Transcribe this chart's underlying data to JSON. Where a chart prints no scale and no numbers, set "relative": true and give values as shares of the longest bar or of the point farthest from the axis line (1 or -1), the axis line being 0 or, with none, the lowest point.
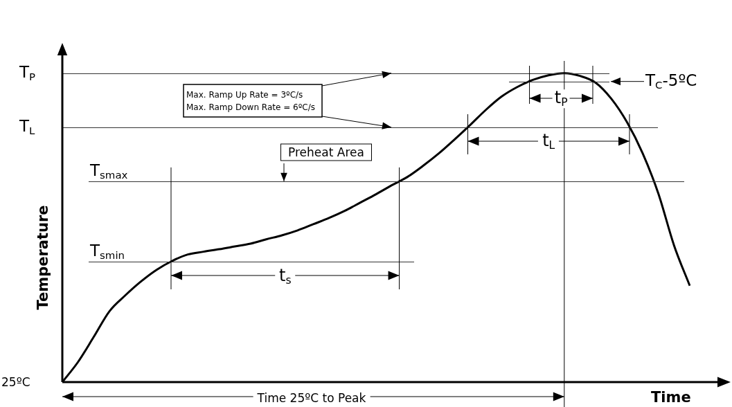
{
  "chart_data": {
    "type": "line",
    "relative": true,
    "xlabel": "Time",
    "ylabel": "Temperature",
    "categories": [
      null,
      null,
      null,
      null,
      null,
      null,
      null,
      null,
      null,
      null,
      null,
      null,
      null,
      null,
      null,
      null,
      null,
      null,
      null,
      null,
      null,
      null,
      null,
      null,
      null,
      null,
      null,
      null,
      null,
      null,
      null,
      null,
      null,
      null,
      null,
      null,
      null,
      null,
      null,
      null,
      null
    ],
    "series": [
      {
        "color": "#000000",
        "values": [
          0,
          0.065,
          0.146,
          0.229,
          0.28,
          0.325,
          0.363,
          0.392,
          0.413,
          0.422,
          0.43,
          0.439,
          0.448,
          0.462,
          0.475,
          0.491,
          0.511,
          0.531,
          0.554,
          0.581,
          0.608,
          0.637,
          0.664,
          0.7,
          0.74,
          0.785,
          0.832,
          0.881,
          0.924,
          0.955,
          0.978,
          0.993,
          1,
          0.991,
          0.969,
          0.917,
          0.841,
          0.74,
          0.61,
          0.442,
          0.312
        ]
      }
    ],
    "ref_lines": [
      {
        "axis": "y",
        "value": 1,
        "label": "T$_{P}$"
      },
      {
        "axis": "y",
        "value": 0.973,
        "label": "T$_{C}$-5ºC"
      },
      {
        "axis": "y",
        "value": 0.825,
        "label": "T$_{L}$"
      },
      {
        "axis": "y",
        "value": 0.65,
        "label": "T$_{smax}$"
      },
      {
        "axis": "y",
        "value": 0.39,
        "label": "T$_{smin}$"
      },
      {
        "axis": "y",
        "value": 0,
        "label": "25ºC"
      }
    ],
    "annotations": [
      "Max. Ramp Up Rate = 3ºC/s",
      "Max. Ramp Down Rate = 6ºC/s",
      "Preheat Area",
      "t$_{s}$",
      "t$_{L}$",
      "t$_{P}$",
      "Time 25ºC to Peak"
    ]
  }
}
